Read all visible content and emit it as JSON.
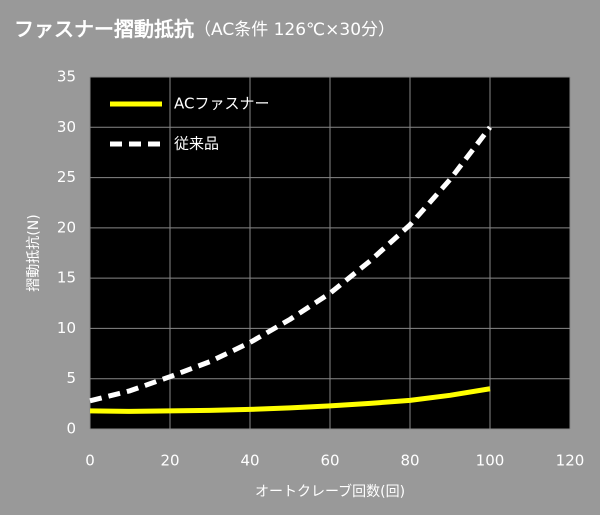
{
  "chart_data": {
    "type": "line",
    "title": "ファスナー摺動抵抗",
    "subtitle": "（AC条件 126℃×30分）",
    "x_label": "オートクレーブ回数(回)",
    "y_label": "摺動抵抗(N)",
    "x": [
      0,
      10,
      20,
      30,
      40,
      50,
      60,
      70,
      80,
      90,
      100
    ],
    "series": [
      {
        "name": "ACファスナー",
        "color": "#ffff00",
        "dash": false,
        "values": [
          1.8,
          1.75,
          1.8,
          1.85,
          1.95,
          2.1,
          2.3,
          2.55,
          2.85,
          3.35,
          4.0
        ]
      },
      {
        "name": "従来品",
        "color": "#ffffff",
        "dash": true,
        "values": [
          2.8,
          3.8,
          5.2,
          6.7,
          8.6,
          10.9,
          13.5,
          16.7,
          20.3,
          24.8,
          30.0
        ]
      }
    ],
    "xlim": [
      0,
      120
    ],
    "xticks": [
      0,
      20,
      40,
      60,
      80,
      100,
      120
    ],
    "ylim": [
      0,
      35
    ],
    "yticks": [
      0,
      5,
      10,
      15,
      20,
      25,
      30,
      35
    ],
    "grid": true,
    "legend": "top-left"
  }
}
